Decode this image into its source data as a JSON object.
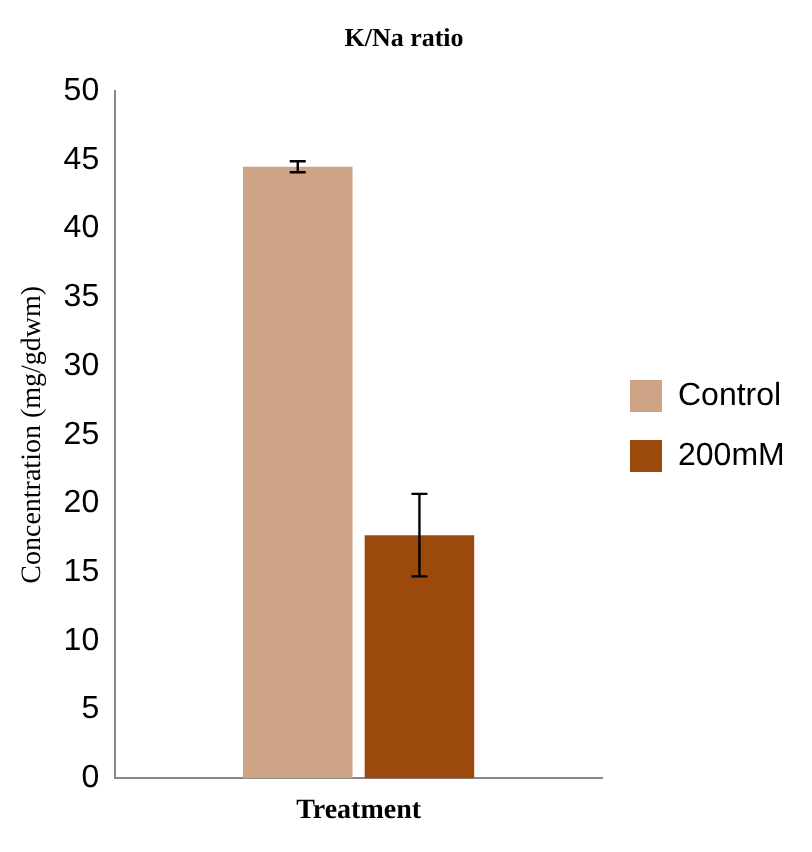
{
  "chart_data": {
    "type": "bar",
    "title": "K/Na ratio",
    "ylabel": "Concentration (mg/gdwm)",
    "categories": [
      "Treatment"
    ],
    "series": [
      {
        "name": "Control",
        "color": "#cda486",
        "values": [
          44.5
        ],
        "errors": [
          0.4
        ]
      },
      {
        "name": "200mM",
        "color": "#9b4a0c",
        "values": [
          17.7
        ],
        "errors": [
          3
        ]
      }
    ],
    "ylim": [
      0,
      50
    ],
    "yticks": [
      0,
      5,
      10,
      15,
      20,
      25,
      30,
      35,
      40,
      45,
      50
    ],
    "grid": false,
    "legend": "right"
  }
}
